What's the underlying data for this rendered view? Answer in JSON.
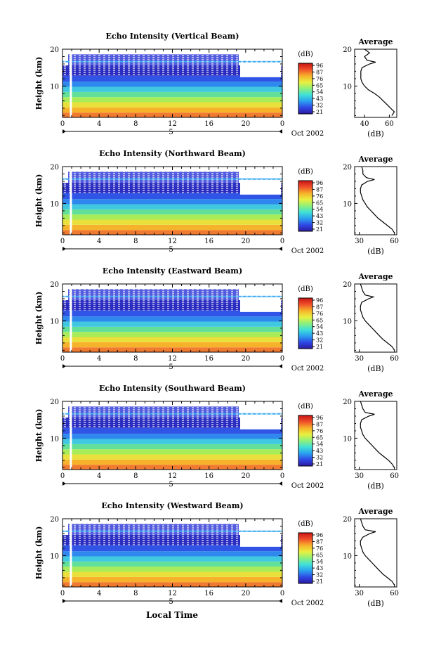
{
  "figure": {
    "xlabel": "Local Time",
    "date_label": "Oct 2002",
    "day_label": "5",
    "colorbar_unit": "(dB)",
    "colorbar_ticks": [
      "96",
      "87",
      "76",
      "65",
      "54",
      "43",
      "32",
      "21"
    ],
    "colorbar_colors": [
      "#2b1aa0",
      "#2f48e6",
      "#2aa0f0",
      "#3fe0d8",
      "#8ef07a",
      "#e9f040",
      "#f6b22a",
      "#f0502a",
      "#c81414"
    ]
  },
  "chart_data": [
    {
      "type": "heatmap",
      "title": "Echo Intensity (Vertical Beam)",
      "ylabel": "Height (km)",
      "x_ticks": [
        "0",
        "4",
        "8",
        "12",
        "16",
        "20",
        "0"
      ],
      "y_ticks": [
        "10",
        "20"
      ],
      "xlim": [
        0,
        24
      ],
      "ylim": [
        1.5,
        20
      ],
      "clim": [
        21,
        96
      ],
      "profile": {
        "title": "Average",
        "xlabel": "(dB)",
        "x_ticks": [
          "40",
          "60"
        ],
        "xlim": [
          32,
          66
        ],
        "heights": [
          2,
          3,
          4,
          5,
          6,
          7,
          8,
          9,
          10,
          11,
          12,
          13,
          14,
          15,
          16,
          16.5,
          17,
          18,
          19,
          20
        ],
        "values": [
          62,
          64,
          61,
          58,
          55,
          52,
          48,
          43,
          40,
          38,
          37,
          37,
          37,
          38,
          44,
          49,
          42,
          40,
          44,
          40
        ]
      }
    },
    {
      "type": "heatmap",
      "title": "Echo Intensity (Northward Beam)",
      "ylabel": "Height (km)",
      "x_ticks": [
        "0",
        "4",
        "8",
        "12",
        "16",
        "20",
        "0"
      ],
      "y_ticks": [
        "10",
        "20"
      ],
      "xlim": [
        0,
        24
      ],
      "ylim": [
        1.5,
        20
      ],
      "clim": [
        21,
        96
      ],
      "profile": {
        "title": "Average",
        "xlabel": "(dB)",
        "x_ticks": [
          "30",
          "60"
        ],
        "xlim": [
          26,
          62
        ],
        "heights": [
          2,
          3,
          4,
          5,
          6,
          7,
          8,
          9,
          10,
          11,
          12,
          13,
          14,
          15,
          16,
          16.5,
          17,
          18,
          19,
          20
        ],
        "values": [
          60,
          58,
          54,
          50,
          46,
          43,
          40,
          37,
          35,
          33,
          32,
          31,
          31,
          32,
          37,
          43,
          36,
          33,
          33,
          32
        ]
      }
    },
    {
      "type": "heatmap",
      "title": "Echo Intensity (Eastward Beam)",
      "ylabel": "Height (km)",
      "x_ticks": [
        "0",
        "4",
        "8",
        "12",
        "16",
        "20",
        "0"
      ],
      "y_ticks": [
        "10",
        "20"
      ],
      "xlim": [
        0,
        24
      ],
      "ylim": [
        1.5,
        20
      ],
      "clim": [
        21,
        96
      ],
      "profile": {
        "title": "Average",
        "xlabel": "(dB)",
        "x_ticks": [
          "30",
          "60"
        ],
        "xlim": [
          26,
          62
        ],
        "heights": [
          2,
          3,
          4,
          5,
          6,
          7,
          8,
          9,
          10,
          11,
          12,
          13,
          14,
          15,
          16,
          16.5,
          17,
          18,
          19,
          20
        ],
        "values": [
          60,
          58,
          54,
          50,
          47,
          44,
          41,
          38,
          35,
          33,
          32,
          31,
          31,
          32,
          38,
          42,
          35,
          33,
          32,
          31
        ]
      }
    },
    {
      "type": "heatmap",
      "title": "Echo Intensity (Southward Beam)",
      "ylabel": "Height (km)",
      "x_ticks": [
        "0",
        "4",
        "8",
        "12",
        "16",
        "20",
        "0"
      ],
      "y_ticks": [
        "10",
        "20"
      ],
      "xlim": [
        0,
        24
      ],
      "ylim": [
        1.5,
        20
      ],
      "clim": [
        21,
        96
      ],
      "profile": {
        "title": "Average",
        "xlabel": "(dB)",
        "x_ticks": [
          "30",
          "60"
        ],
        "xlim": [
          26,
          62
        ],
        "heights": [
          2,
          3,
          4,
          5,
          6,
          7,
          8,
          9,
          10,
          11,
          12,
          13,
          14,
          15,
          16,
          16.5,
          17,
          18,
          19,
          20
        ],
        "values": [
          60,
          58,
          55,
          51,
          47,
          44,
          41,
          38,
          35,
          33,
          32,
          31,
          31,
          32,
          38,
          43,
          35,
          33,
          32,
          31
        ]
      }
    },
    {
      "type": "heatmap",
      "title": "Echo Intensity (Westward Beam)",
      "ylabel": "Height (km)",
      "x_ticks": [
        "0",
        "4",
        "8",
        "12",
        "16",
        "20",
        "0"
      ],
      "y_ticks": [
        "10",
        "20"
      ],
      "xlim": [
        0,
        24
      ],
      "ylim": [
        1.5,
        20
      ],
      "clim": [
        21,
        96
      ],
      "profile": {
        "title": "Average",
        "xlabel": "(dB)",
        "x_ticks": [
          "30",
          "60"
        ],
        "xlim": [
          26,
          62
        ],
        "heights": [
          2,
          3,
          4,
          5,
          6,
          7,
          8,
          9,
          10,
          11,
          12,
          13,
          14,
          15,
          16,
          16.5,
          17,
          18,
          19,
          20
        ],
        "values": [
          60,
          58,
          54,
          50,
          47,
          44,
          41,
          38,
          35,
          33,
          32,
          31,
          31,
          33,
          39,
          44,
          35,
          33,
          32,
          31
        ]
      }
    }
  ]
}
